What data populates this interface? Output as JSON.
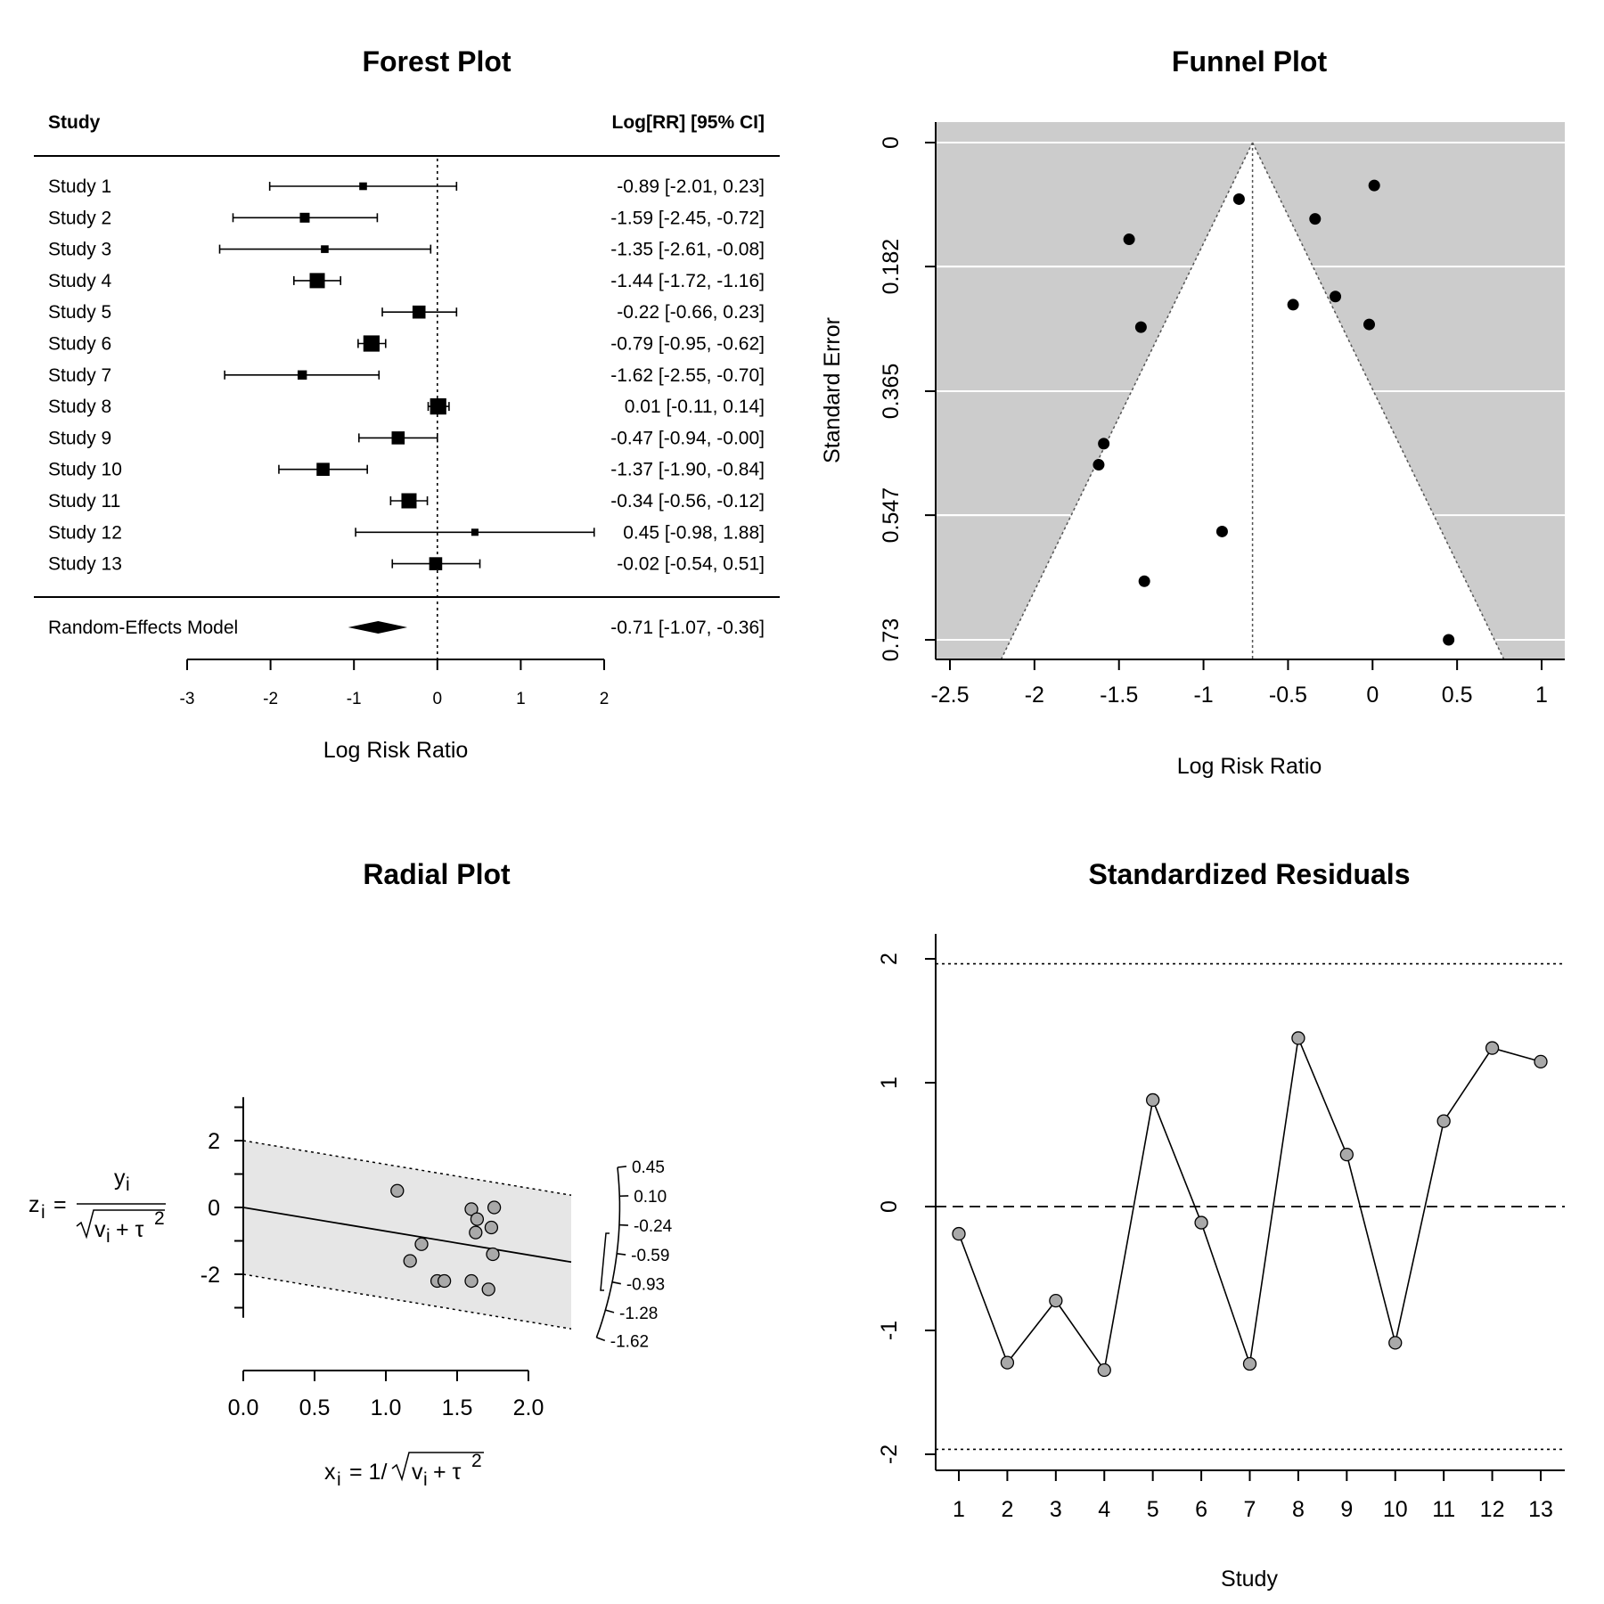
{
  "chart_data": [
    {
      "type": "forest",
      "title": "Forest Plot",
      "col_study": "Study",
      "col_estimate": "Log[RR] [95% CI]",
      "xlabel": "Log Risk Ratio",
      "xlim": [
        -3,
        2
      ],
      "xticks": [
        -3,
        -2,
        -1,
        0,
        1,
        2
      ],
      "xtick_labels": [
        "-3",
        "-2",
        "-1",
        "0",
        "1",
        "2"
      ],
      "studies": [
        {
          "label": "Study 1",
          "est": -0.89,
          "lo": -2.01,
          "hi": 0.23,
          "text": "-0.89 [-2.01,  0.23]",
          "w": 0.3
        },
        {
          "label": "Study 2",
          "est": -1.59,
          "lo": -2.45,
          "hi": -0.72,
          "text": "-1.59 [-2.45, -0.72]",
          "w": 0.5
        },
        {
          "label": "Study 3",
          "est": -1.35,
          "lo": -2.61,
          "hi": -0.08,
          "text": "-1.35 [-2.61, -0.08]",
          "w": 0.3
        },
        {
          "label": "Study 4",
          "est": -1.44,
          "lo": -1.72,
          "hi": -1.16,
          "text": "-1.44 [-1.72, -1.16]",
          "w": 1.0
        },
        {
          "label": "Study 5",
          "est": -0.22,
          "lo": -0.66,
          "hi": 0.23,
          "text": "-0.22 [-0.66,  0.23]",
          "w": 0.8
        },
        {
          "label": "Study 6",
          "est": -0.79,
          "lo": -0.95,
          "hi": -0.62,
          "text": "-0.79 [-0.95, -0.62]",
          "w": 1.1
        },
        {
          "label": "Study 7",
          "est": -1.62,
          "lo": -2.55,
          "hi": -0.7,
          "text": "-1.62 [-2.55, -0.70]",
          "w": 0.45
        },
        {
          "label": "Study 8",
          "est": 0.01,
          "lo": -0.11,
          "hi": 0.14,
          "text": "0.01 [-0.11,  0.14]",
          "w": 1.1
        },
        {
          "label": "Study 9",
          "est": -0.47,
          "lo": -0.94,
          "hi": -0.0,
          "text": "-0.47 [-0.94, -0.00]",
          "w": 0.8
        },
        {
          "label": "Study 10",
          "est": -1.37,
          "lo": -1.9,
          "hi": -0.84,
          "text": "-1.37 [-1.90, -0.84]",
          "w": 0.8
        },
        {
          "label": "Study 11",
          "est": -0.34,
          "lo": -0.56,
          "hi": -0.12,
          "text": "-0.34 [-0.56, -0.12]",
          "w": 1.0
        },
        {
          "label": "Study 12",
          "est": 0.45,
          "lo": -0.98,
          "hi": 1.88,
          "text": "0.45 [-0.98,  1.88]",
          "w": 0.25
        },
        {
          "label": "Study 13",
          "est": -0.02,
          "lo": -0.54,
          "hi": 0.51,
          "text": "-0.02 [-0.54,  0.51]",
          "w": 0.8
        }
      ],
      "summary": {
        "label": "Random-Effects Model",
        "est": -0.71,
        "lo": -1.07,
        "hi": -0.36,
        "text": "-0.71 [-1.07, -0.36]"
      }
    },
    {
      "type": "scatter",
      "title": "Funnel Plot",
      "xlabel": "Log Risk Ratio",
      "ylabel": "Standard Error",
      "xlim": [
        -2.5,
        1
      ],
      "ylim_inverted": [
        0,
        0.73
      ],
      "xticks": [
        -2.5,
        -2,
        -1.5,
        -1,
        -0.5,
        0,
        0.5,
        1
      ],
      "xtick_labels": [
        "-2.5",
        "-2",
        "-1.5",
        "-1",
        "-0.5",
        "0",
        "0.5",
        "1"
      ],
      "yticks": [
        0,
        0.182,
        0.365,
        0.547,
        0.73
      ],
      "ytick_labels": [
        "0",
        "0.182",
        "0.365",
        "0.547",
        "0.73"
      ],
      "center": -0.71,
      "points": [
        {
          "x": 0.01,
          "y": 0.063
        },
        {
          "x": -0.79,
          "y": 0.083
        },
        {
          "x": -0.34,
          "y": 0.112
        },
        {
          "x": -1.44,
          "y": 0.142
        },
        {
          "x": -0.22,
          "y": 0.226
        },
        {
          "x": -0.47,
          "y": 0.238
        },
        {
          "x": -0.02,
          "y": 0.267
        },
        {
          "x": -1.37,
          "y": 0.271
        },
        {
          "x": -1.59,
          "y": 0.442
        },
        {
          "x": -1.62,
          "y": 0.473
        },
        {
          "x": -0.89,
          "y": 0.571
        },
        {
          "x": -1.35,
          "y": 0.644
        },
        {
          "x": 0.45,
          "y": 0.73
        }
      ]
    },
    {
      "type": "scatter",
      "title": "Radial Plot",
      "ylabel": "z_i = y_i / sqrt(v_i + tau^2)",
      "xlabel": "x_i = 1/sqrt(v_i + tau^2)",
      "ylabel_lhs": "z",
      "ylabel_sub": "i",
      "ylabel_num": "y",
      "ylabel_num_sub": "i",
      "ylabel_den_v": "v",
      "ylabel_den_sub": "i",
      "ylabel_den_tau": "+ τ",
      "ylabel_den_sup": "2",
      "xlabel_lhs": "x",
      "xlabel_sub": "i",
      "xlabel_eq": "= 1/",
      "xlabel_v": "v",
      "xlabel_vsub": "i",
      "xlabel_tau": "+ τ",
      "xlabel_sup": "2",
      "xlim": [
        0,
        2.3
      ],
      "xticks": [
        0.0,
        0.5,
        1.0,
        1.5,
        2.0
      ],
      "xtick_labels": [
        "0.0",
        "0.5",
        "1.0",
        "1.5",
        "2.0"
      ],
      "ylim": [
        -4,
        4
      ],
      "yticks": [
        2,
        0,
        -2
      ],
      "ytick_labels": [
        "2",
        "0",
        "-2"
      ],
      "summary_slope": -0.71,
      "arc_labels": [
        "0.45",
        "0.10",
        "-0.24",
        "-0.59",
        "-0.93",
        "-1.28",
        "-1.62"
      ],
      "points": [
        {
          "x": 1.08,
          "y": 0.5
        },
        {
          "x": 1.6,
          "y": -0.05
        },
        {
          "x": 1.76,
          "y": 0.0
        },
        {
          "x": 1.64,
          "y": -0.35
        },
        {
          "x": 1.74,
          "y": -0.6
        },
        {
          "x": 1.63,
          "y": -0.75
        },
        {
          "x": 1.25,
          "y": -1.1
        },
        {
          "x": 1.75,
          "y": -1.4
        },
        {
          "x": 1.17,
          "y": -1.6
        },
        {
          "x": 1.36,
          "y": -2.2
        },
        {
          "x": 1.41,
          "y": -2.2
        },
        {
          "x": 1.6,
          "y": -2.2
        },
        {
          "x": 1.72,
          "y": -2.45
        }
      ]
    },
    {
      "type": "line",
      "title": "Standardized Residuals",
      "xlabel": "Study",
      "xlim": [
        1,
        13
      ],
      "ylim": [
        -2,
        2
      ],
      "xticks": [
        1,
        2,
        3,
        4,
        5,
        6,
        7,
        8,
        9,
        10,
        11,
        12,
        13
      ],
      "xtick_labels": [
        "1",
        "2",
        "3",
        "4",
        "5",
        "6",
        "7",
        "8",
        "9",
        "10",
        "11",
        "12",
        "13"
      ],
      "yticks": [
        -2,
        -1,
        0,
        1,
        2
      ],
      "ytick_labels": [
        "-2",
        "-1",
        "0",
        "1",
        "2"
      ],
      "ref_lines": [
        -1.96,
        0,
        1.96
      ],
      "x": [
        1,
        2,
        3,
        4,
        5,
        6,
        7,
        8,
        9,
        10,
        11,
        12,
        13
      ],
      "values": [
        -0.22,
        -1.26,
        -0.76,
        -1.32,
        0.86,
        -0.13,
        -1.27,
        1.36,
        0.42,
        -1.1,
        0.69,
        1.28,
        1.17
      ]
    }
  ],
  "colors": {
    "funnel_bg": "#cccccc",
    "radial_band": "#e6e6e6",
    "point_fill_grey": "#a9a9a9",
    "ink": "#000000"
  }
}
